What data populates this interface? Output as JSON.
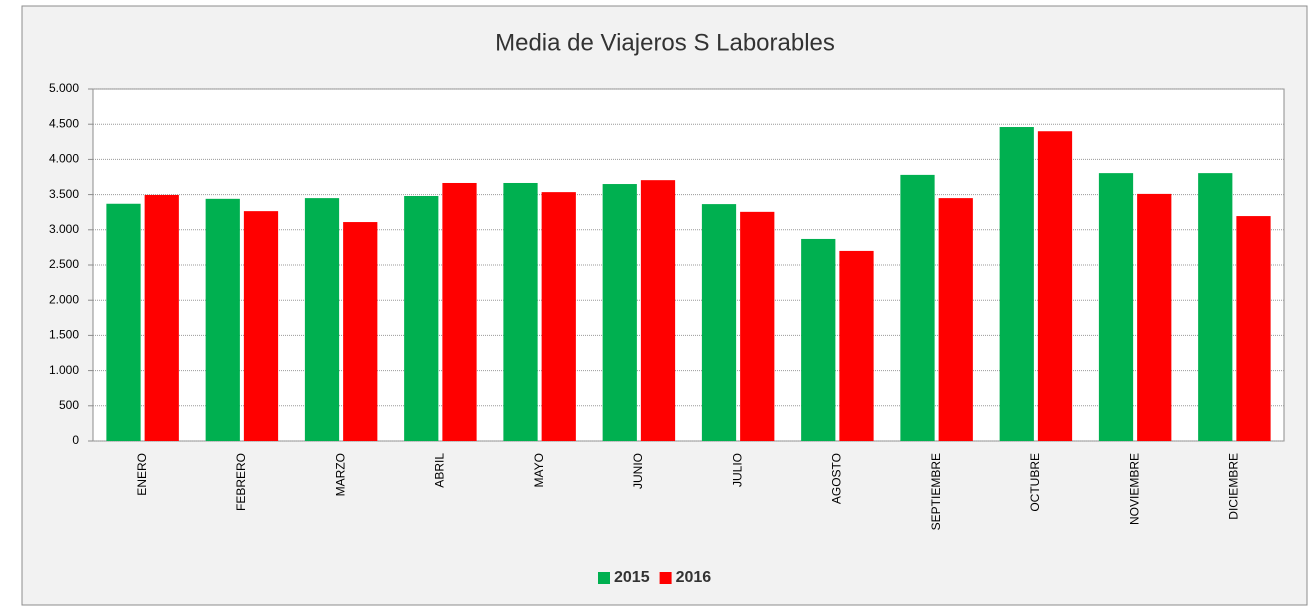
{
  "chart_data": {
    "type": "bar",
    "title": "Media de Viajeros  S Laborables",
    "categories": [
      "ENERO",
      "FEBRERO",
      "MARZO",
      "ABRIL",
      "MAYO",
      "JUNIO",
      "JULIO",
      "AGOSTO",
      "SEPTIEMBRE",
      "OCTUBRE",
      "NOVIEMBRE",
      "DICIEMBRE"
    ],
    "series": [
      {
        "name": "2015",
        "color": "#00b050",
        "values": [
          3370,
          3440,
          3450,
          3480,
          3665,
          3650,
          3365,
          2870,
          3780,
          4460,
          3805,
          3805
        ]
      },
      {
        "name": "2016",
        "color": "#ff0000",
        "values": [
          3495,
          3265,
          3110,
          3665,
          3535,
          3705,
          3255,
          2700,
          3450,
          4400,
          3510,
          3195
        ]
      }
    ],
    "ylim": [
      0,
      5000
    ],
    "yticks": [
      0,
      500,
      {
        "value": 1000,
        "label": "1.000"
      },
      {
        "value": 1500,
        "label": "1.500"
      },
      {
        "value": 2000,
        "label": "2.000"
      },
      {
        "value": 2500,
        "label": "2.500"
      },
      {
        "value": 3000,
        "label": "3.000"
      },
      {
        "value": 3500,
        "label": "3.500"
      },
      {
        "value": 4000,
        "label": "4.000"
      },
      {
        "value": 4500,
        "label": "4.500"
      },
      {
        "value": 5000,
        "label": "5.000"
      }
    ],
    "grid": true,
    "legend": "bottom"
  }
}
